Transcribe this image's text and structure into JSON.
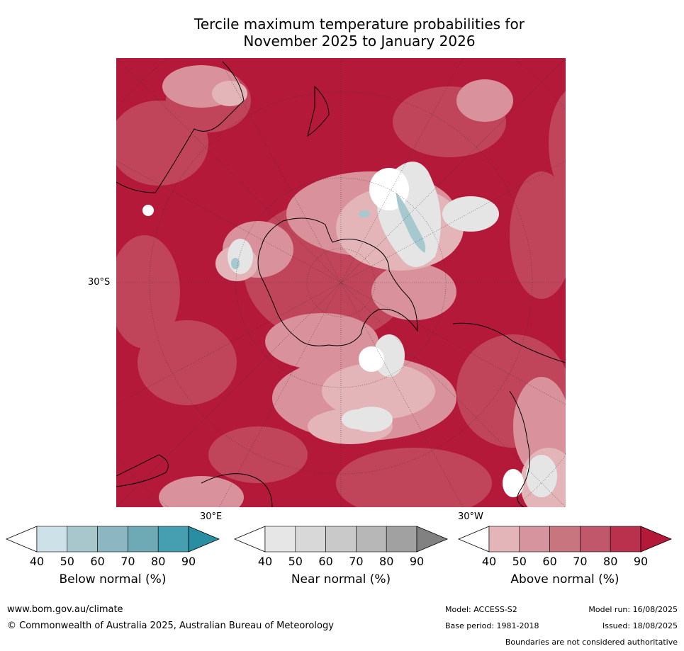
{
  "title": {
    "line1": "Tercile maximum temperature probabilities for",
    "line2": "November 2025 to January 2026"
  },
  "map": {
    "graticule_labels": {
      "lat_30s": "30°S",
      "lon_30e": "30°E",
      "lon_30w": "30°W"
    },
    "colors": {
      "ocean_hot": "#b5193a",
      "mid_hot": "#c24a5e",
      "light_hot": "#d9929c",
      "pale_hot": "#e3b4b8",
      "near_light": "#e5e5e5",
      "below_light": "#a6c8cf",
      "coast": "#000000"
    }
  },
  "colorbars": [
    {
      "id": "below",
      "label": "Below normal (%)",
      "ticks": [
        "40",
        "50",
        "60",
        "70",
        "80",
        "90"
      ],
      "colors": [
        "#ffffff",
        "#cde2e8",
        "#a8c7cd",
        "#8cb6c1",
        "#6eaab6",
        "#469fb0",
        "#2a8ea3"
      ]
    },
    {
      "id": "near",
      "label": "Near normal (%)",
      "ticks": [
        "40",
        "50",
        "60",
        "70",
        "80",
        "90"
      ],
      "colors": [
        "#ffffff",
        "#e6e6e6",
        "#d8d8d8",
        "#c9c9c9",
        "#b7b7b7",
        "#a1a1a1",
        "#818181"
      ]
    },
    {
      "id": "above",
      "label": "Above normal (%)",
      "ticks": [
        "40",
        "50",
        "60",
        "70",
        "80",
        "90"
      ],
      "colors": [
        "#ffffff",
        "#e3b4b8",
        "#d6959e",
        "#c97580",
        "#c0576a",
        "#b9314c",
        "#b5193a"
      ]
    }
  ],
  "footer": {
    "website": "www.bom.gov.au/climate",
    "copyright": "© Commonwealth of Australia 2025, Australian Bureau of Meteorology",
    "model": "Model: ACCESS-S2",
    "base_period": "Base period: 1981-2018",
    "model_run": "Model run: 16/08/2025",
    "issued": "Issued: 18/08/2025",
    "disclaimer": "Boundaries are not considered authoritative"
  }
}
